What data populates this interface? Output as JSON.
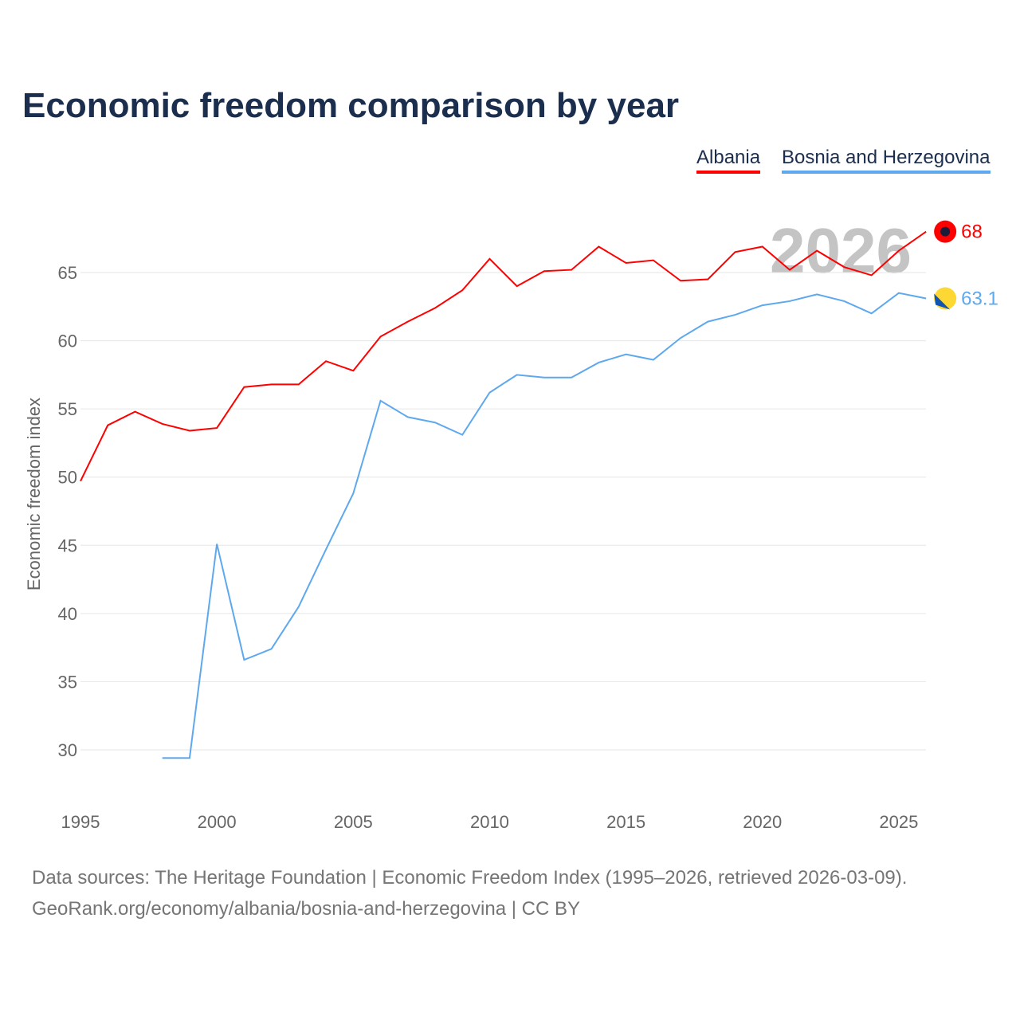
{
  "chart_data": {
    "type": "line",
    "title": "Economic freedom comparison by year",
    "xlabel": "",
    "ylabel": "Economic freedom index",
    "xlim": [
      1995,
      2026
    ],
    "ylim": [
      27,
      69
    ],
    "x_ticks": [
      1995,
      2000,
      2005,
      2010,
      2015,
      2020,
      2025
    ],
    "y_ticks": [
      30,
      35,
      40,
      45,
      50,
      55,
      60,
      65
    ],
    "grid": true,
    "legend_placement": "top-right",
    "watermark_year": "2026",
    "series": [
      {
        "name": "Albania",
        "color": "#ff0000",
        "end_label": "68",
        "x": [
          1995,
          1996,
          1997,
          1998,
          1999,
          2000,
          2001,
          2002,
          2003,
          2004,
          2005,
          2006,
          2007,
          2008,
          2009,
          2010,
          2011,
          2012,
          2013,
          2014,
          2015,
          2016,
          2017,
          2018,
          2019,
          2020,
          2021,
          2022,
          2023,
          2024,
          2025,
          2026
        ],
        "values": [
          49.7,
          53.8,
          54.8,
          53.9,
          53.4,
          53.6,
          56.6,
          56.8,
          56.8,
          58.5,
          57.8,
          60.3,
          61.4,
          62.4,
          63.7,
          66.0,
          64.0,
          65.1,
          65.2,
          66.9,
          65.7,
          65.9,
          64.4,
          64.5,
          66.5,
          66.9,
          65.2,
          66.6,
          65.4,
          64.8,
          66.6,
          68.0
        ]
      },
      {
        "name": "Bosnia and Herzegovina",
        "color": "#5ea8ee",
        "end_label": "63.1",
        "x": [
          1998,
          1999,
          2000,
          2001,
          2002,
          2003,
          2004,
          2005,
          2006,
          2007,
          2008,
          2009,
          2010,
          2011,
          2012,
          2013,
          2014,
          2015,
          2016,
          2017,
          2018,
          2019,
          2020,
          2021,
          2022,
          2023,
          2024,
          2025,
          2026
        ],
        "values": [
          29.4,
          29.4,
          45.1,
          36.6,
          37.4,
          40.5,
          44.7,
          48.8,
          55.6,
          54.4,
          54.0,
          53.1,
          56.2,
          57.5,
          57.3,
          57.3,
          58.4,
          59.0,
          58.6,
          60.2,
          61.4,
          61.9,
          62.6,
          62.9,
          63.4,
          62.9,
          62.0,
          63.5,
          63.1
        ]
      }
    ]
  },
  "footer": {
    "line1": "Data sources: The Heritage Foundation | Economic Freedom Index (1995–2026, retrieved 2026-03-09).",
    "line2": "GeoRank.org/economy/albania/bosnia-and-herzegovina | CC BY"
  }
}
